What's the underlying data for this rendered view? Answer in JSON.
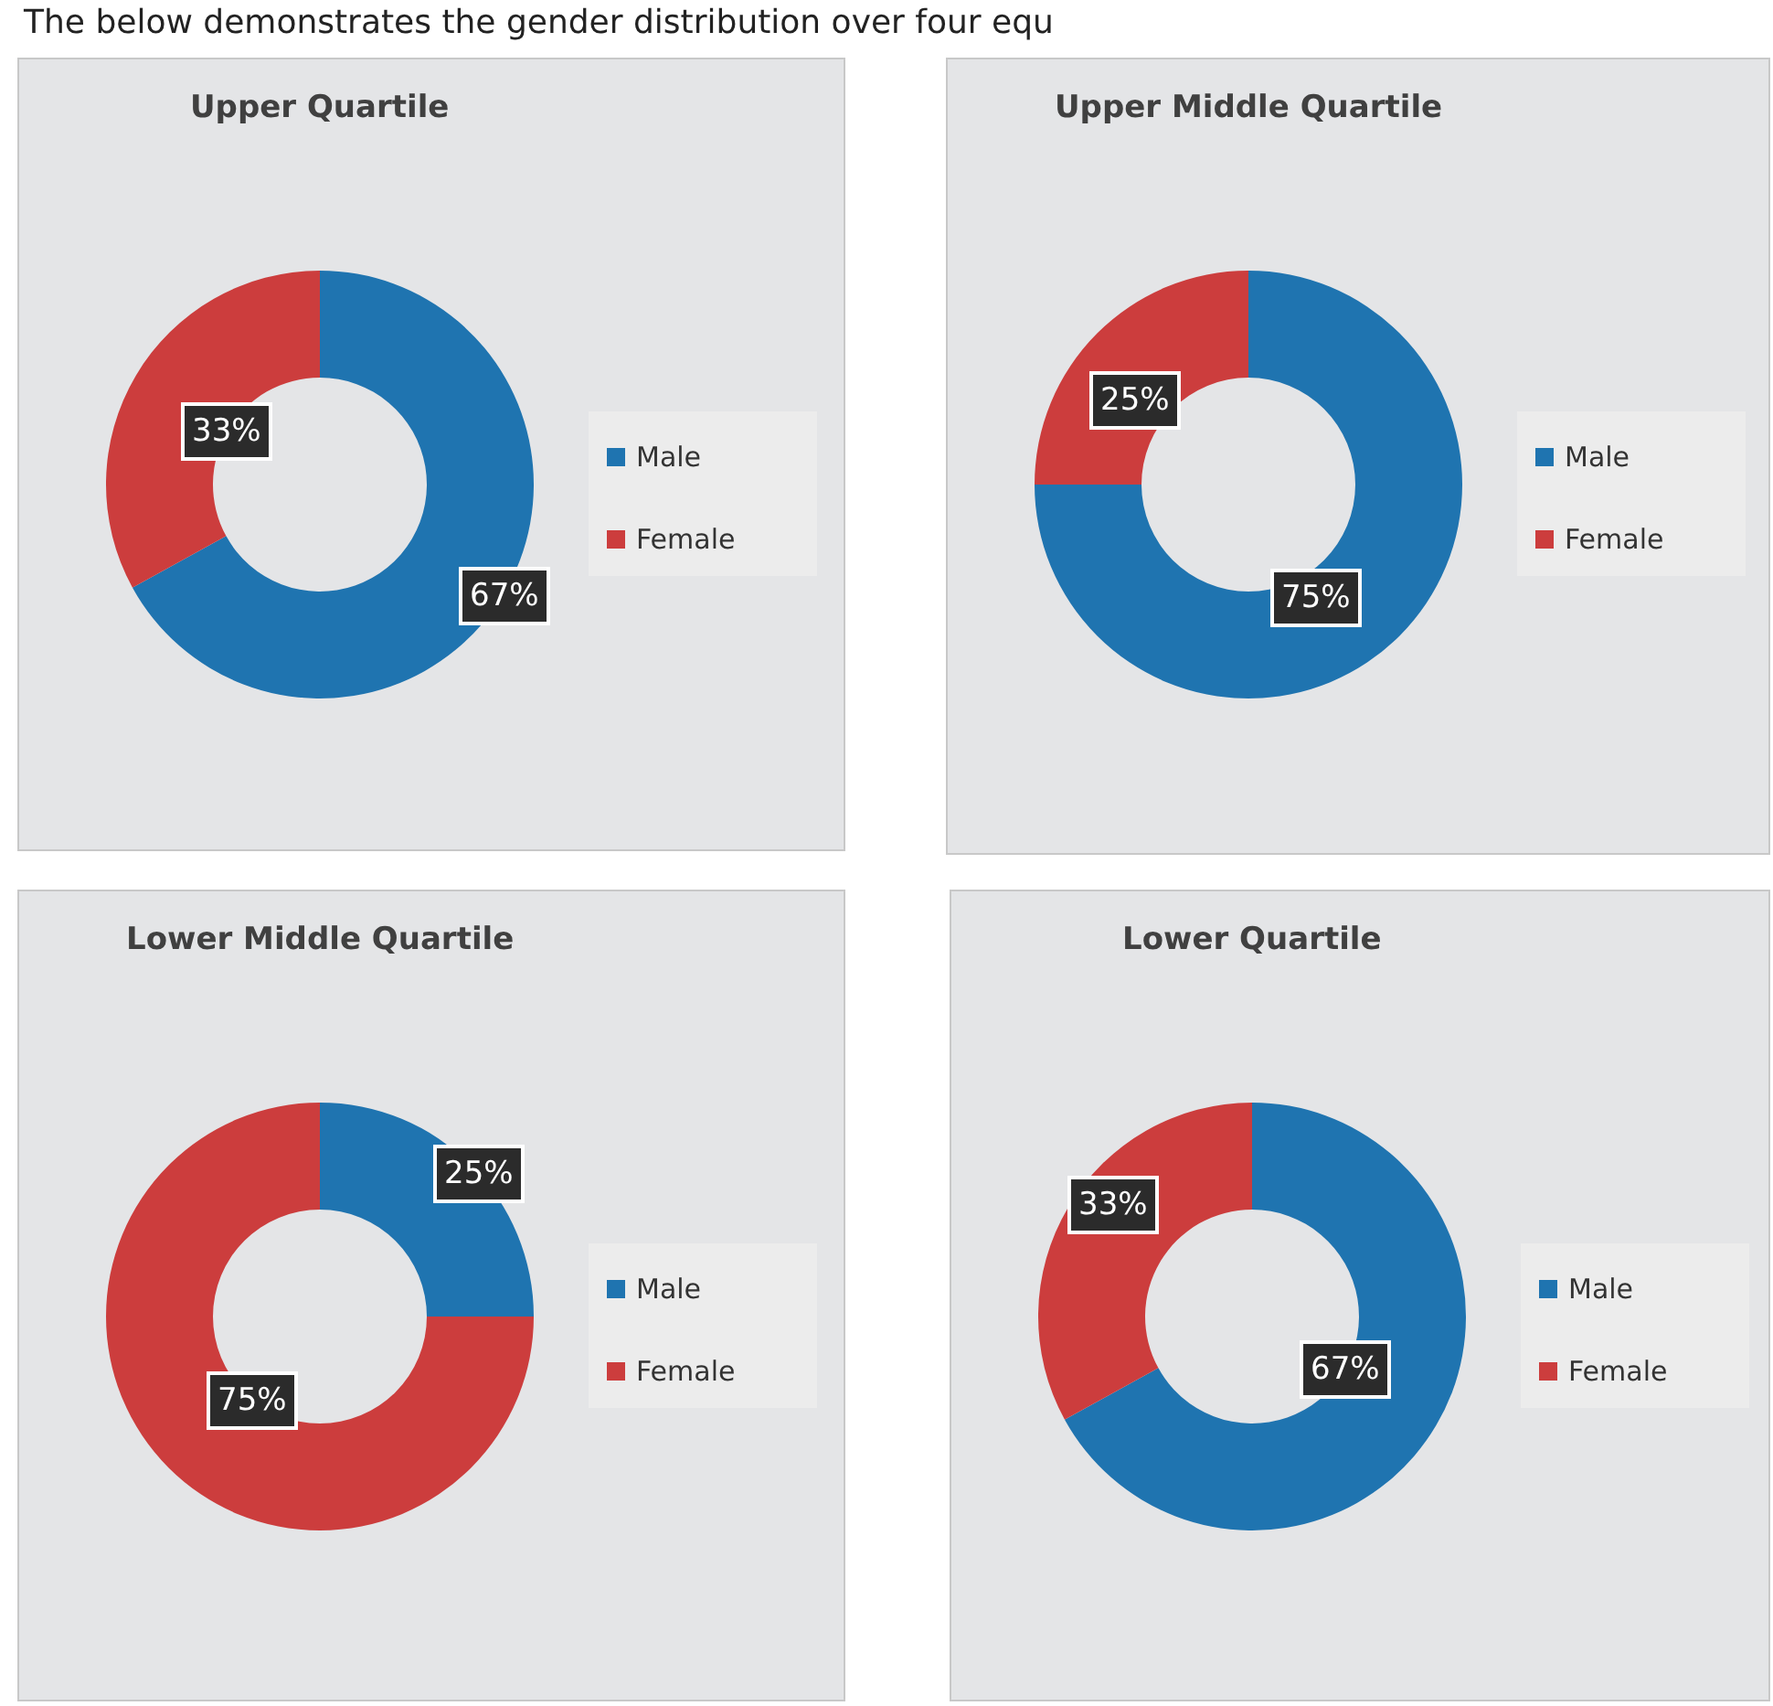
{
  "chart_data": [
    {
      "type": "donut",
      "title": "Upper Quartile",
      "annotations": [
        "The below demonstrates the gender distribution over four equ"
      ],
      "categories": [
        "Male",
        "Female"
      ],
      "values": [
        67,
        33
      ],
      "colors": [
        "#1f74b0",
        "#cc3d3d"
      ],
      "value_labels": [
        "67%",
        "33%"
      ],
      "legend": "right"
    },
    {
      "type": "donut",
      "title": "Upper Middle Quartile",
      "categories": [
        "Male",
        "Female"
      ],
      "values": [
        75,
        25
      ],
      "colors": [
        "#1f74b0",
        "#cc3d3d"
      ],
      "value_labels": [
        "75%",
        "25%"
      ],
      "legend": "right"
    },
    {
      "type": "donut",
      "title": "Lower Middle Quartile",
      "categories": [
        "Male",
        "Female"
      ],
      "values": [
        25,
        75
      ],
      "colors": [
        "#1f74b0",
        "#cc3d3d"
      ],
      "value_labels": [
        "25%",
        "75%"
      ],
      "legend": "right"
    },
    {
      "type": "donut",
      "title": "Lower Quartile",
      "categories": [
        "Male",
        "Female"
      ],
      "values": [
        67,
        33
      ],
      "colors": [
        "#1f74b0",
        "#cc3d3d"
      ],
      "value_labels": [
        "67%",
        "33%"
      ],
      "legend": "right"
    }
  ]
}
